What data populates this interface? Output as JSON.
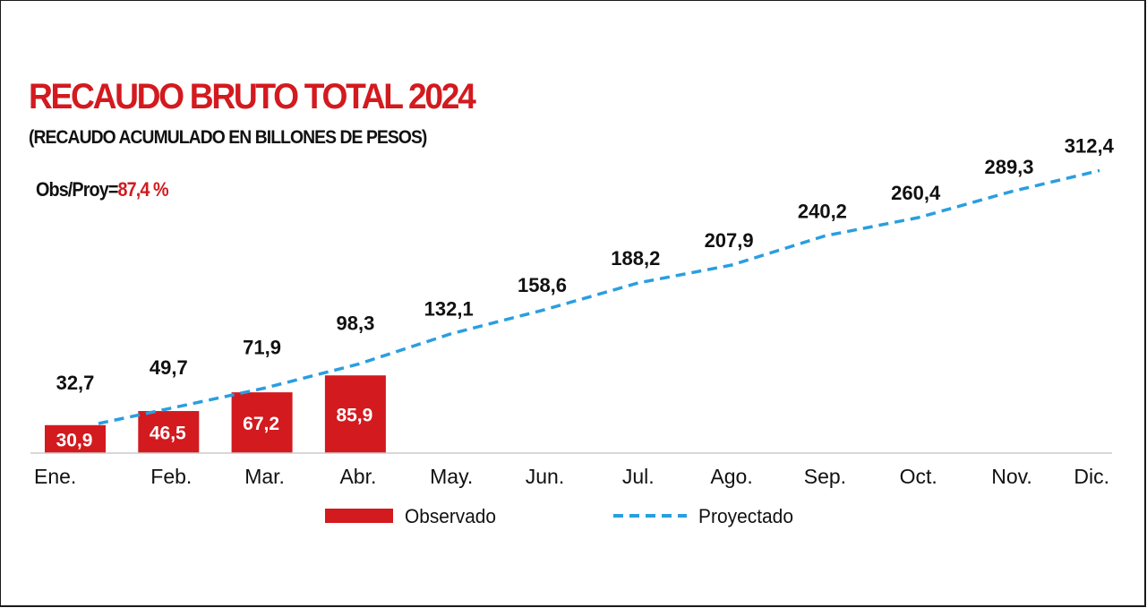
{
  "header": {
    "title": "RECAUDO BRUTO TOTAL 2024",
    "subtitle": "(RECAUDO ACUMULADO EN BILLONES DE PESOS)",
    "ratio_label": "Obs/Proy=",
    "ratio_value": "87,4 %"
  },
  "colors": {
    "observed": "#d31a1f",
    "projected": "#2a9ee0",
    "axis": "#cccccc",
    "title": "#d31a1f"
  },
  "legend": {
    "observed_label": "Observado",
    "projected_label": "Proyectado"
  },
  "chart_data": {
    "type": "bar",
    "title": "RECAUDO BRUTO TOTAL 2024",
    "subtitle": "(RECAUDO ACUMULADO EN BILLONES DE PESOS)",
    "categories": [
      "Ene.",
      "Feb.",
      "Mar.",
      "Abr.",
      "May.",
      "Jun.",
      "Jul.",
      "Ago.",
      "Sep.",
      "Oct.",
      "Nov.",
      "Dic."
    ],
    "series": [
      {
        "name": "Observado",
        "type": "bar",
        "values": [
          30.9,
          46.5,
          67.2,
          85.9,
          null,
          null,
          null,
          null,
          null,
          null,
          null,
          null
        ],
        "labels": [
          "30,9",
          "46,5",
          "67,2",
          "85,9"
        ]
      },
      {
        "name": "Proyectado",
        "type": "line",
        "style": "dashed",
        "values": [
          32.7,
          49.7,
          71.9,
          98.3,
          132.1,
          158.6,
          188.2,
          207.9,
          240.2,
          260.4,
          289.3,
          312.4
        ],
        "labels": [
          "32,7",
          "49,7",
          "71,9",
          "98,3",
          "132,1",
          "158,6",
          "188,2",
          "207,9",
          "240,2",
          "260,4",
          "289,3",
          "312,4"
        ]
      }
    ],
    "xlabel": "",
    "ylabel": "",
    "ylim": [
      0,
      330
    ],
    "grid": false,
    "legend_position": "bottom-center"
  }
}
